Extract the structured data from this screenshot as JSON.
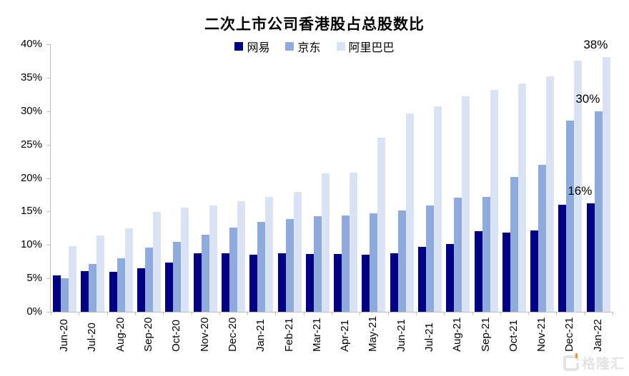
{
  "chart": {
    "watermark_text": "格隆汇"
  },
  "chart_data": {
    "type": "bar",
    "title": "二次上市公司香港股占总股数比",
    "categories": [
      "Jun-20",
      "Jul-20",
      "Aug-20",
      "Sep-20",
      "Oct-20",
      "Nov-20",
      "Dec-20",
      "Jan-21",
      "Feb-21",
      "Mar-21",
      "Apr-21",
      "May-21",
      "Jun-21",
      "Jul-21",
      "Aug-21",
      "Sep-21",
      "Oct-21",
      "Nov-21",
      "Dec-21",
      "Jan-22"
    ],
    "series": [
      {
        "name": "网易",
        "color": "#000080",
        "values": [
          5.4,
          6.1,
          6.0,
          6.5,
          7.4,
          8.7,
          8.8,
          8.5,
          8.7,
          8.6,
          8.6,
          8.5,
          8.7,
          9.7,
          10.1,
          12.1,
          11.8,
          12.2,
          16.0,
          16.2
        ]
      },
      {
        "name": "京东",
        "color": "#8FAADC",
        "values": [
          5.0,
          7.2,
          8.0,
          9.6,
          10.5,
          11.5,
          12.6,
          13.4,
          13.9,
          14.3,
          14.4,
          14.7,
          15.2,
          15.9,
          17.1,
          17.2,
          20.2,
          22.0,
          28.6,
          30.0
        ]
      },
      {
        "name": "阿里巴巴",
        "color": "#DAE3F3",
        "values": [
          9.8,
          11.4,
          12.5,
          14.9,
          15.6,
          15.9,
          16.5,
          17.2,
          17.9,
          20.7,
          20.8,
          26.0,
          29.7,
          30.7,
          32.2,
          33.2,
          34.1,
          35.2,
          37.5,
          38.1
        ]
      }
    ],
    "ylim": [
      0,
      40
    ],
    "y_tick_labels": [
      "0%",
      "5%",
      "10%",
      "15%",
      "20%",
      "25%",
      "30%",
      "35%",
      "40%"
    ],
    "grid": false,
    "legend_position": "top-center",
    "xlabel": "",
    "ylabel": "",
    "axis_color": "#BFBFBF",
    "data_labels": [
      {
        "category": "Jan-22",
        "series": "网易",
        "text": "16%"
      },
      {
        "category": "Jan-22",
        "series": "京东",
        "text": "30%"
      },
      {
        "category": "Jan-22",
        "series": "阿里巴巴",
        "text": "38%"
      }
    ]
  }
}
